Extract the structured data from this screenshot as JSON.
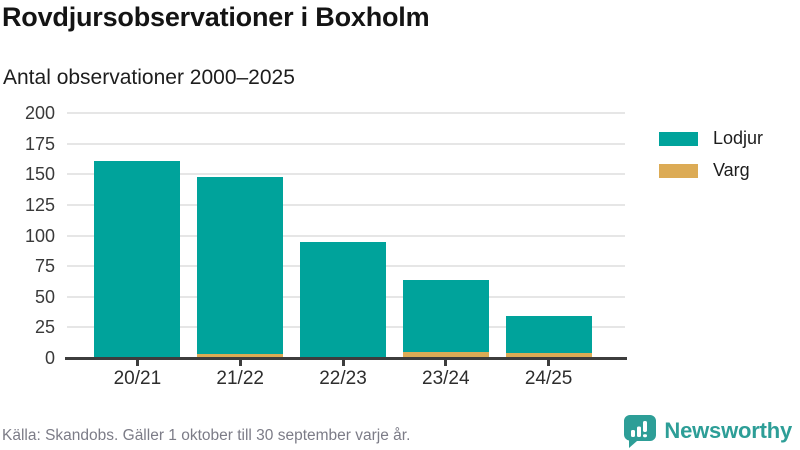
{
  "header": {
    "title": "Rovdjursobservationer i Boxholm",
    "subtitle": "Antal observationer 2000–2025"
  },
  "chart_data": {
    "type": "bar",
    "stacked": true,
    "categories": [
      "20/21",
      "21/22",
      "22/23",
      "23/24",
      "24/25"
    ],
    "series": [
      {
        "name": "Lodjur",
        "color": "#00a39b",
        "values": [
          160,
          145,
          95,
          59,
          30
        ]
      },
      {
        "name": "Varg",
        "color": "#dcab55",
        "values": [
          1,
          3,
          0,
          5,
          4
        ]
      }
    ],
    "stack_order_bottom_to_top": [
      "Varg",
      "Lodjur"
    ],
    "totals": [
      161,
      148,
      95,
      64,
      34
    ],
    "title": "Rovdjursobservationer i Boxholm",
    "subtitle": "Antal observationer 2000–2025",
    "xlabel": "",
    "ylabel": "",
    "ylim": [
      0,
      200
    ],
    "yticks": [
      0,
      25,
      50,
      75,
      100,
      125,
      150,
      175,
      200
    ],
    "grid": true,
    "legend_position": "right"
  },
  "legend": {
    "items": [
      {
        "label": "Lodjur",
        "color": "#00a39b"
      },
      {
        "label": "Varg",
        "color": "#dcab55"
      }
    ]
  },
  "footer": {
    "source": "Källa: Skandobs. Gäller 1 oktober till 30 september varje år.",
    "brand": "Newsworthy"
  },
  "colors": {
    "lodjur": "#00a39b",
    "varg": "#dcab55",
    "axis": "#3d3d3d",
    "gridline": "#e6e6e6",
    "text_dark": "#1d1d1d",
    "text_muted": "#7c7c87",
    "brand_teal": "#2d9e97"
  }
}
